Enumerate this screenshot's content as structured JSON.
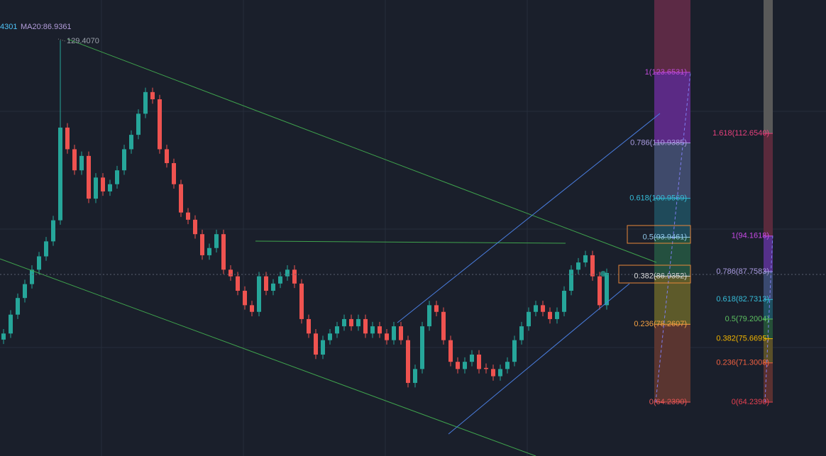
{
  "chart_data": {
    "type": "candlestick",
    "legend_texts": [
      "4301",
      "MA20:86.9361"
    ],
    "legend_colors": [
      "#4fc3f7",
      "#b39ddb"
    ],
    "high_label": "129.4070",
    "up_color": "#26a69a",
    "down_color": "#ef5350",
    "ylim": [
      54.53,
      136.69
    ],
    "open": [
      75.5,
      76.6,
      80.0,
      83.0,
      85.5,
      88.1,
      90.5,
      93.2,
      97.0,
      113.7,
      109.8,
      106,
      108.6,
      100.9,
      104.7,
      102.2,
      103.5,
      106,
      109.8,
      112.4,
      116.2,
      120.1,
      118.8,
      109.8,
      107.3,
      103.5,
      98.4,
      97.1,
      94.5,
      90.7,
      92,
      94.5,
      88.1,
      86.9,
      84.3,
      81.7,
      80.5,
      86.9,
      84.3,
      85.6,
      86.9,
      88.1,
      85.6,
      79.2,
      76.6,
      72.8,
      75.4,
      76.6,
      77.9,
      79.2,
      77.9,
      79.2,
      76.6,
      77.9,
      76.6,
      75.4,
      77.9,
      75.4,
      67.7,
      70.2,
      77.9,
      81.7,
      80.5,
      75.4,
      71.5,
      70.2,
      71.5,
      72.8,
      70.4,
      70.2,
      68.9,
      70.2,
      71.5,
      75.4,
      77.9,
      80.5,
      81.7,
      80.5,
      79.2,
      80.5,
      84.3,
      88.1,
      89.4,
      90.7,
      86.9,
      81.7
    ],
    "high": [
      77.4,
      80.8,
      83.8,
      86.3,
      88.9,
      91.3,
      94.0,
      97.8,
      129.407,
      114.5,
      110.6,
      109.4,
      109.4,
      105.5,
      105.5,
      104.3,
      106.8,
      110.6,
      113.2,
      117.0,
      120.9,
      120.9,
      119.6,
      110.6,
      108.1,
      104.3,
      99.2,
      97.9,
      95.3,
      92.8,
      95.3,
      95.3,
      88.9,
      87.7,
      85.1,
      82.5,
      87.7,
      87.7,
      86.4,
      87.7,
      88.9,
      88.9,
      86.4,
      80.0,
      77.4,
      76.2,
      77.4,
      78.7,
      80.0,
      80.0,
      80.0,
      80.0,
      78.7,
      78.7,
      77.4,
      78.7,
      78.7,
      76.2,
      71.0,
      78.7,
      82.5,
      82.5,
      81.3,
      76.2,
      72.3,
      72.3,
      73.6,
      73.6,
      71.2,
      71.0,
      71.0,
      72.3,
      76.2,
      78.7,
      81.3,
      82.5,
      82.5,
      81.3,
      81.3,
      85.1,
      88.9,
      90.2,
      91.5,
      91.5,
      87.7,
      88.3
    ],
    "low": [
      74.7,
      75.8,
      79.2,
      82.2,
      84.7,
      87.3,
      89.7,
      92.4,
      96.2,
      109.0,
      105.2,
      105.2,
      100.1,
      100.1,
      101.4,
      101.4,
      102.7,
      105.2,
      109.0,
      111.6,
      115.4,
      118.0,
      109.0,
      106.5,
      102.7,
      97.6,
      96.3,
      93.7,
      89.9,
      89.9,
      91.2,
      87.3,
      86.1,
      83.5,
      80.9,
      79.7,
      79.7,
      83.5,
      83.5,
      84.8,
      86.1,
      84.8,
      78.4,
      75.8,
      72.0,
      72.0,
      74.6,
      75.8,
      77.1,
      77.1,
      77.1,
      75.8,
      75.8,
      75.8,
      74.6,
      74.6,
      74.6,
      66.9,
      66.9,
      69.4,
      77.1,
      79.7,
      74.6,
      70.7,
      69.4,
      69.4,
      70.7,
      69.4,
      69.4,
      68.1,
      68.1,
      69.4,
      70.7,
      74.6,
      77.1,
      79.7,
      79.7,
      78.4,
      78.4,
      79.7,
      83.5,
      87.3,
      88.6,
      86.1,
      80.9,
      80.9
    ],
    "close": [
      76.6,
      80.0,
      83.0,
      85.5,
      88.1,
      90.5,
      93.2,
      97.0,
      113.7,
      109.8,
      106,
      108.6,
      100.9,
      104.7,
      102.2,
      103.5,
      106,
      109.8,
      112.4,
      116.2,
      120.1,
      118.8,
      109.8,
      107.3,
      103.5,
      98.4,
      97.1,
      94.5,
      90.7,
      92,
      94.5,
      88.1,
      86.9,
      84.3,
      81.7,
      80.5,
      86.9,
      84.3,
      85.6,
      86.9,
      88.1,
      85.6,
      79.2,
      76.6,
      72.8,
      75.4,
      76.6,
      77.9,
      79.2,
      77.9,
      79.2,
      76.6,
      77.9,
      76.6,
      75.4,
      77.9,
      75.4,
      67.7,
      70.2,
      77.9,
      81.7,
      80.5,
      75.4,
      71.5,
      70.2,
      71.5,
      72.8,
      70.2,
      70.2,
      68.9,
      70.2,
      71.5,
      75.4,
      77.9,
      80.5,
      81.7,
      80.5,
      79.2,
      80.5,
      84.3,
      88.1,
      89.4,
      90.7,
      86.9,
      81.7,
      87.5
    ],
    "fib_left": {
      "top_band": "#5c2a45",
      "levels": [
        {
          "label": "1(123.6531)",
          "value": 123.6531,
          "color": "#c04ad8",
          "band": "#5b2a85"
        },
        {
          "label": "0.786(110.9385)",
          "value": 110.9385,
          "color": "#a99be0",
          "band": "#3f4a6b"
        },
        {
          "label": "0.618(100.9569)",
          "value": 100.9569,
          "color": "#36bcd8",
          "band": "#1f4a5a"
        },
        {
          "label": "0.5(93.9461)",
          "value": 93.9461,
          "color": "#8fc7e8",
          "band": "#24503f"
        },
        {
          "label": "0.382(86.9352)",
          "value": 86.9352,
          "color": "#d8d8d8",
          "band": "#5d5a2a"
        },
        {
          "label": "0.236(78.2607)",
          "value": 78.2607,
          "color": "#f5a142",
          "band": "#5a3530"
        },
        {
          "label": "0(64.2390)",
          "value": 64.239,
          "color": "#e65454",
          "band": null
        }
      ]
    },
    "fib_right": {
      "top_band": "#595959",
      "levels": [
        {
          "label": "1.618(112.6540)",
          "value": 112.654,
          "color": "#e6407c",
          "band": "#5a2a3c"
        },
        {
          "label": "1(94.1618)",
          "value": 94.1618,
          "color": "#c84ae6",
          "band": "#55308a"
        },
        {
          "label": "0.786(87.7583)",
          "value": 87.7583,
          "color": "#a99be0",
          "band": "#3a4a70"
        },
        {
          "label": "0.618(82.7313)",
          "value": 82.7313,
          "color": "#36bcd8",
          "band": "#1e5060"
        },
        {
          "label": "0.5(79.2004)",
          "value": 79.2004,
          "color": "#5cc060",
          "band": "#255038"
        },
        {
          "label": "0.382(75.6695)",
          "value": 75.6695,
          "color": "#f0b400",
          "band": "#5a5028"
        },
        {
          "label": "0.236(71.3008)",
          "value": 71.3008,
          "color": "#f06040",
          "band": "#5a3030"
        },
        {
          "label": "0(64.2390)",
          "value": 64.239,
          "color": "#e64050",
          "band": null
        }
      ]
    }
  }
}
